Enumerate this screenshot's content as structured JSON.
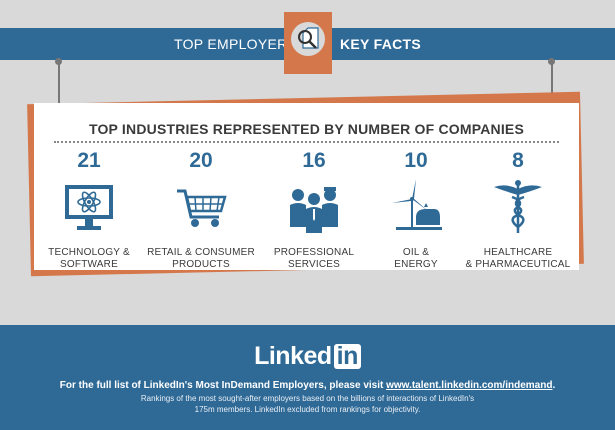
{
  "header": {
    "left_label": "TOP EMPLOYER",
    "right_label": "KEY FACTS"
  },
  "card": {
    "title": "TOP INDUSTRIES REPRESENTED BY NUMBER OF COMPANIES",
    "industries": [
      {
        "count": "21",
        "label": "TECHNOLOGY &\nSOFTWARE",
        "icon": "computer-atom-icon"
      },
      {
        "count": "20",
        "label": "RETAIL & CONSUMER\nPRODUCTS",
        "icon": "shopping-cart-icon"
      },
      {
        "count": "16",
        "label": "PROFESSIONAL\nSERVICES",
        "icon": "professionals-icon"
      },
      {
        "count": "10",
        "label": "OIL &\nENERGY",
        "icon": "oil-energy-icon"
      },
      {
        "count": "8",
        "label": "HEALTHCARE\n& PHARMACEUTICAL",
        "icon": "caduceus-icon"
      }
    ]
  },
  "footer": {
    "logo_text": "Linked",
    "logo_in": "in",
    "cta_text": "For the full list of LinkedIn's Most InDemand Employers, please visit ",
    "cta_link": "www.talent.linkedin.com/indemand",
    "cta_end": ".",
    "note": "Rankings of the most sought-after employers based on the billions of interactions of LinkedIn's 175m members. LinkedIn excluded from rankings for objectivity."
  },
  "colors": {
    "blue": "#2f6a97",
    "orange": "#d4774a",
    "background": "#d9d9d9"
  }
}
